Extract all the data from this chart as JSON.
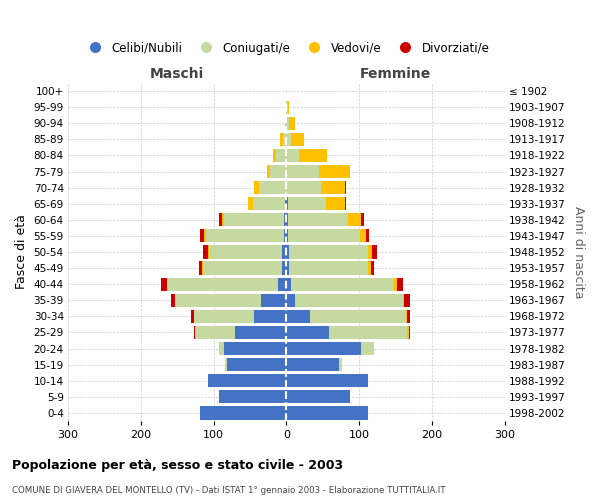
{
  "age_groups": [
    "100+",
    "95-99",
    "90-94",
    "85-89",
    "80-84",
    "75-79",
    "70-74",
    "65-69",
    "60-64",
    "55-59",
    "50-54",
    "45-49",
    "40-44",
    "35-39",
    "30-34",
    "25-29",
    "20-24",
    "15-19",
    "10-14",
    "5-9",
    "0-4"
  ],
  "birth_years": [
    "≤ 1902",
    "1903-1907",
    "1908-1912",
    "1913-1917",
    "1918-1922",
    "1923-1927",
    "1928-1932",
    "1933-1937",
    "1938-1942",
    "1943-1947",
    "1948-1952",
    "1953-1957",
    "1958-1962",
    "1963-1967",
    "1968-1972",
    "1973-1977",
    "1978-1982",
    "1983-1987",
    "1988-1992",
    "1993-1997",
    "1998-2002"
  ],
  "males": {
    "celibi": [
      0,
      0,
      0,
      0,
      0,
      0,
      0,
      2,
      3,
      3,
      6,
      6,
      12,
      35,
      45,
      70,
      85,
      82,
      108,
      93,
      118
    ],
    "coniugati": [
      0,
      0,
      2,
      4,
      14,
      22,
      38,
      44,
      82,
      108,
      100,
      108,
      152,
      118,
      82,
      55,
      8,
      2,
      0,
      0,
      0
    ],
    "vedovi": [
      0,
      0,
      0,
      4,
      4,
      5,
      6,
      6,
      4,
      2,
      2,
      2,
      0,
      0,
      0,
      0,
      0,
      0,
      0,
      0,
      0
    ],
    "divorziati": [
      0,
      0,
      0,
      0,
      0,
      0,
      0,
      0,
      4,
      6,
      6,
      4,
      8,
      6,
      4,
      2,
      0,
      0,
      0,
      0,
      0
    ]
  },
  "females": {
    "nubili": [
      0,
      0,
      0,
      0,
      0,
      0,
      0,
      2,
      3,
      3,
      4,
      4,
      6,
      12,
      32,
      58,
      102,
      73,
      112,
      88,
      112
    ],
    "coniugate": [
      0,
      2,
      4,
      6,
      18,
      45,
      48,
      52,
      82,
      98,
      108,
      108,
      142,
      148,
      132,
      108,
      18,
      4,
      0,
      0,
      0
    ],
    "vedove": [
      0,
      2,
      8,
      18,
      38,
      42,
      32,
      26,
      18,
      8,
      6,
      4,
      4,
      2,
      2,
      2,
      0,
      0,
      0,
      0,
      0
    ],
    "divorziate": [
      0,
      0,
      0,
      0,
      0,
      0,
      2,
      2,
      4,
      4,
      6,
      4,
      8,
      8,
      4,
      2,
      0,
      0,
      0,
      0,
      0
    ]
  },
  "colors": {
    "celibi": "#4472c4",
    "coniugati": "#c5d9a0",
    "vedovi": "#ffc000",
    "divorziati": "#cc0000"
  },
  "title1": "Popolazione per età, sesso e stato civile - 2003",
  "title2": "COMUNE DI GIAVERA DEL MONTELLO (TV) - Dati ISTAT 1° gennaio 2003 - Elaborazione TUTTITALIA.IT",
  "xlabel_left": "Maschi",
  "xlabel_right": "Femmine",
  "ylabel_left": "Fasce di età",
  "ylabel_right": "Anni di nascita",
  "xlim": 300,
  "legend_labels": [
    "Celibi/Nubili",
    "Coniugati/e",
    "Vedovi/e",
    "Divorziati/e"
  ]
}
